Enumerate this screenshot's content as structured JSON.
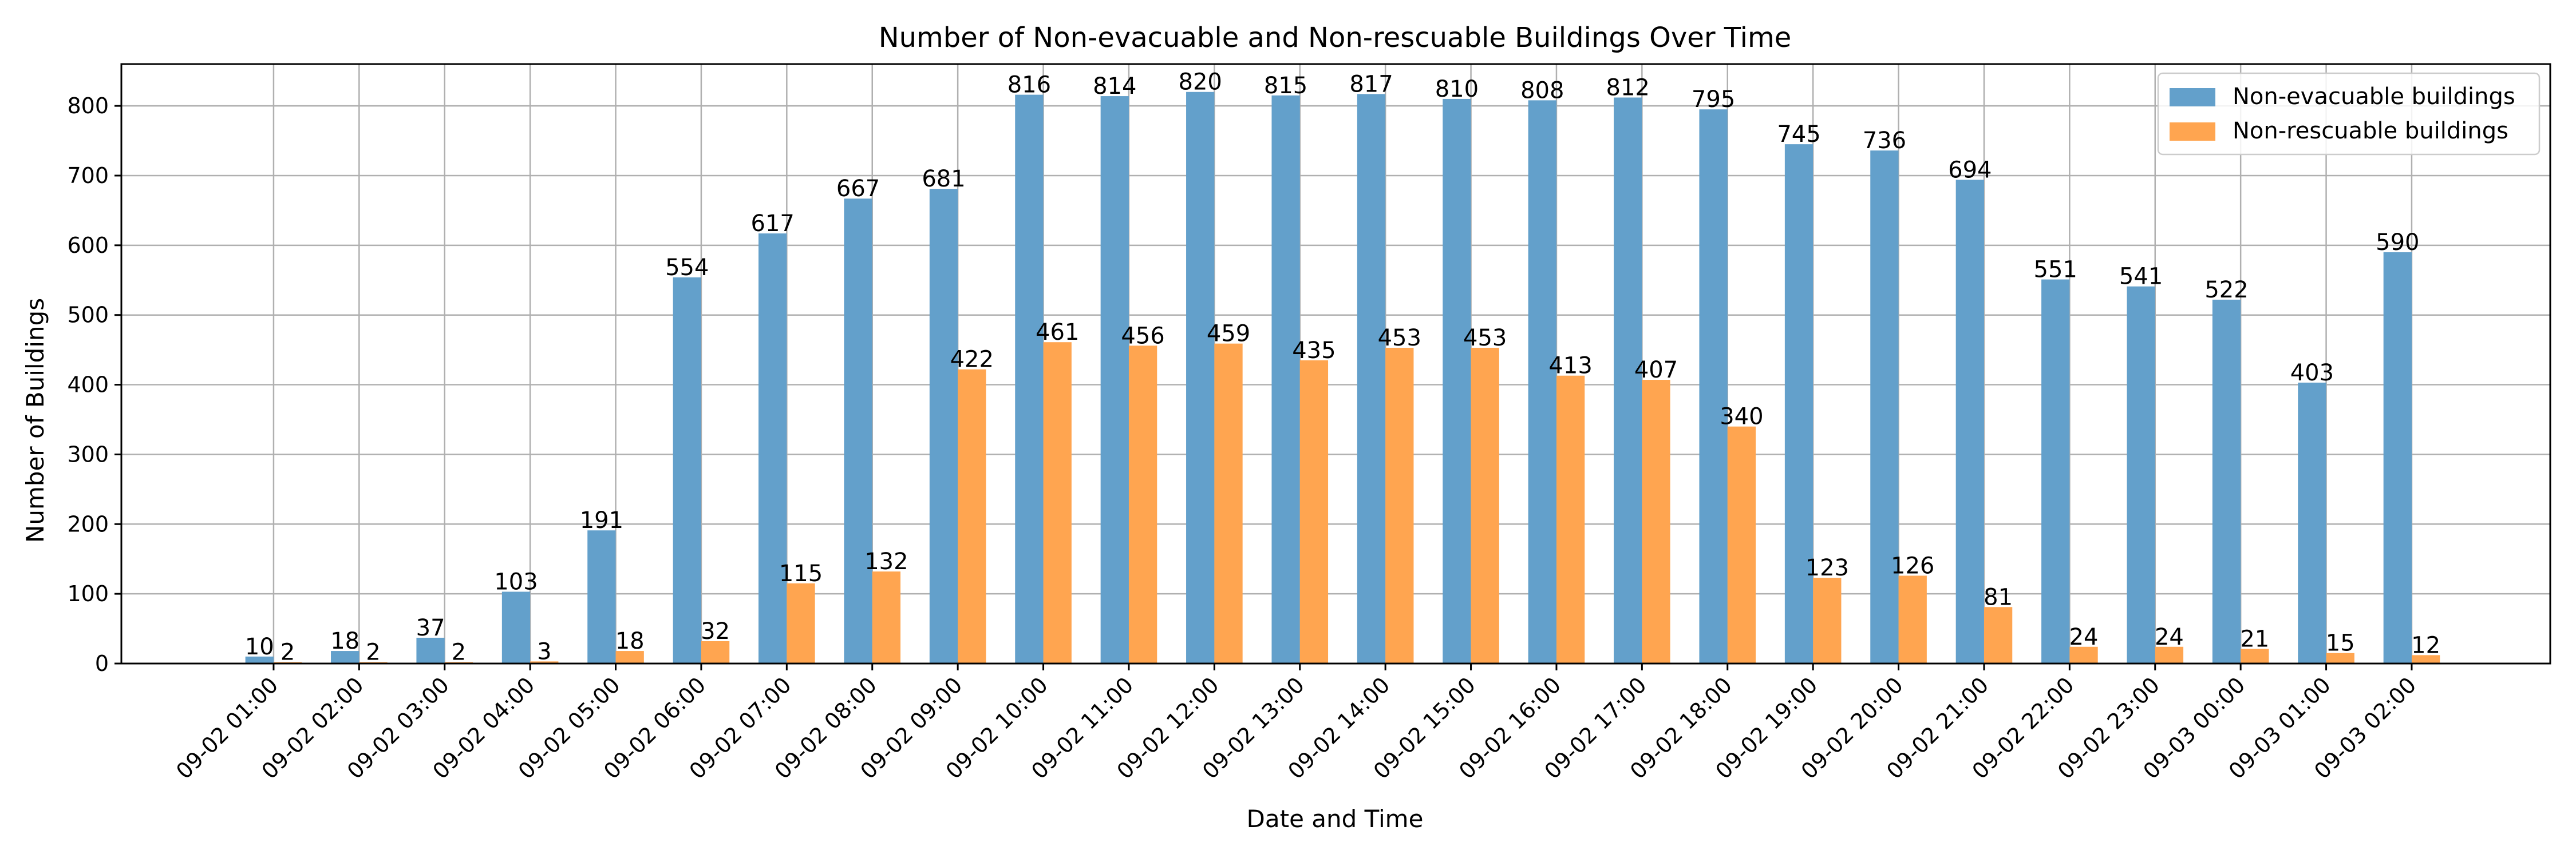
{
  "chart_data": {
    "type": "bar",
    "title": "Number of Non-evacuable and Non-rescuable Buildings Over Time",
    "xlabel": "Date and Time",
    "ylabel": "Number of Buildings",
    "ylim": [
      0,
      860
    ],
    "yticks": [
      0,
      100,
      200,
      300,
      400,
      500,
      600,
      700,
      800
    ],
    "grid": true,
    "legend_position": "top-right",
    "categories": [
      "09-02 01:00",
      "09-02 02:00",
      "09-02 03:00",
      "09-02 04:00",
      "09-02 05:00",
      "09-02 06:00",
      "09-02 07:00",
      "09-02 08:00",
      "09-02 09:00",
      "09-02 10:00",
      "09-02 11:00",
      "09-02 12:00",
      "09-02 13:00",
      "09-02 14:00",
      "09-02 15:00",
      "09-02 16:00",
      "09-02 17:00",
      "09-02 18:00",
      "09-02 19:00",
      "09-02 20:00",
      "09-02 21:00",
      "09-02 22:00",
      "09-02 23:00",
      "09-03 00:00",
      "09-03 01:00",
      "09-03 02:00"
    ],
    "series": [
      {
        "name": "Non-evacuable buildings",
        "color": "#63a0cb",
        "values": [
          10,
          18,
          37,
          103,
          191,
          554,
          617,
          667,
          681,
          816,
          814,
          820,
          815,
          817,
          810,
          808,
          812,
          795,
          745,
          736,
          694,
          551,
          541,
          522,
          403,
          590
        ]
      },
      {
        "name": "Non-rescuable buildings",
        "color": "#ffa550",
        "values": [
          2,
          2,
          2,
          3,
          18,
          32,
          115,
          132,
          422,
          461,
          456,
          459,
          435,
          453,
          453,
          413,
          407,
          340,
          123,
          126,
          81,
          24,
          24,
          21,
          15,
          12
        ]
      }
    ]
  }
}
